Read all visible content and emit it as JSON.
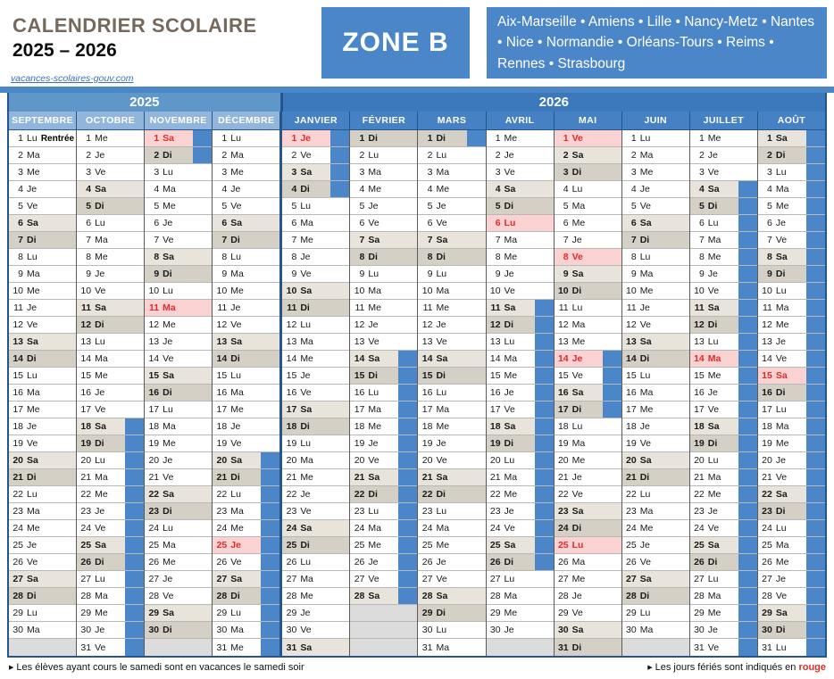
{
  "header": {
    "title": "CALENDRIER SCOLAIRE",
    "subtitle": "2025 – 2026",
    "link": "vacances-scolaires-gouv.com",
    "zone": "ZONE B",
    "cities": "Aix-Marseille • Amiens • Lille • Nancy-Metz • Nantes • Nice • Normandie • Orléans-Tours • Reims • Rennes • Strasbourg"
  },
  "calendar": {
    "day_abbrevs": [
      "Lu",
      "Ma",
      "Me",
      "Je",
      "Ve",
      "Sa",
      "Di"
    ],
    "max_rows": 31,
    "year_groups": [
      {
        "label": "2025",
        "span": 4
      },
      {
        "label": "2026",
        "span": 8
      }
    ],
    "months": [
      {
        "name": "SEPTEMBRE",
        "year": 2025,
        "days": 30,
        "first_dow": 0,
        "vacation": [],
        "holidays": [],
        "notes": {
          "1": "Rentrée"
        }
      },
      {
        "name": "OCTOBRE",
        "year": 2025,
        "days": 31,
        "first_dow": 2,
        "vacation": [
          [
            18,
            31
          ]
        ],
        "holidays": []
      },
      {
        "name": "NOVEMBRE",
        "year": 2025,
        "days": 30,
        "first_dow": 5,
        "vacation": [
          [
            1,
            2
          ]
        ],
        "holidays": [
          1,
          11
        ]
      },
      {
        "name": "DÉCEMBRE",
        "year": 2025,
        "days": 31,
        "first_dow": 0,
        "vacation": [
          [
            20,
            31
          ]
        ],
        "holidays": [
          25
        ]
      },
      {
        "name": "JANVIER",
        "year": 2026,
        "days": 31,
        "first_dow": 3,
        "vacation": [
          [
            1,
            4
          ]
        ],
        "holidays": [
          1
        ]
      },
      {
        "name": "FÉVRIER",
        "year": 2026,
        "days": 28,
        "first_dow": 6,
        "vacation": [
          [
            14,
            28
          ]
        ],
        "holidays": []
      },
      {
        "name": "MARS",
        "year": 2026,
        "days": 31,
        "first_dow": 6,
        "vacation": [
          [
            1,
            1
          ]
        ],
        "holidays": []
      },
      {
        "name": "AVRIL",
        "year": 2026,
        "days": 30,
        "first_dow": 2,
        "vacation": [
          [
            11,
            26
          ]
        ],
        "holidays": [
          6
        ]
      },
      {
        "name": "MAI",
        "year": 2026,
        "days": 31,
        "first_dow": 4,
        "vacation": [
          [
            14,
            17
          ]
        ],
        "holidays": [
          1,
          8,
          14,
          25
        ]
      },
      {
        "name": "JUIN",
        "year": 2026,
        "days": 30,
        "first_dow": 0,
        "vacation": [],
        "holidays": []
      },
      {
        "name": "JUILLET",
        "year": 2026,
        "days": 31,
        "first_dow": 2,
        "vacation": [
          [
            4,
            31
          ]
        ],
        "holidays": [
          14
        ]
      },
      {
        "name": "AOÛT",
        "year": 2026,
        "days": 31,
        "first_dow": 5,
        "vacation": [
          [
            1,
            31
          ]
        ],
        "holidays": [
          15
        ]
      }
    ]
  },
  "footer": {
    "left": "Les élèves ayant cours le samedi sont en vacances le samedi soir",
    "right_prefix": "Les jours fériés sont indiqués en ",
    "right_highlight": "rouge"
  },
  "colors": {
    "accent": "#4a86c8",
    "year_2025_bg": "#6097cb",
    "month_2025_bg": "#92b5dc",
    "year_2026_bg": "#3c78bc",
    "month_2026_bg": "#4681c4",
    "saturday_bg": "#e8e4dc",
    "sunday_bg": "#d5d0c6",
    "holiday_bg": "#fad2d2",
    "holiday_text": "#e02b2b",
    "empty_bg": "#dcdcdc",
    "border_dark": "#24558c",
    "title_color": "#75695d",
    "link_color": "#3b6fb5",
    "footer_red": "#e02b2b"
  }
}
